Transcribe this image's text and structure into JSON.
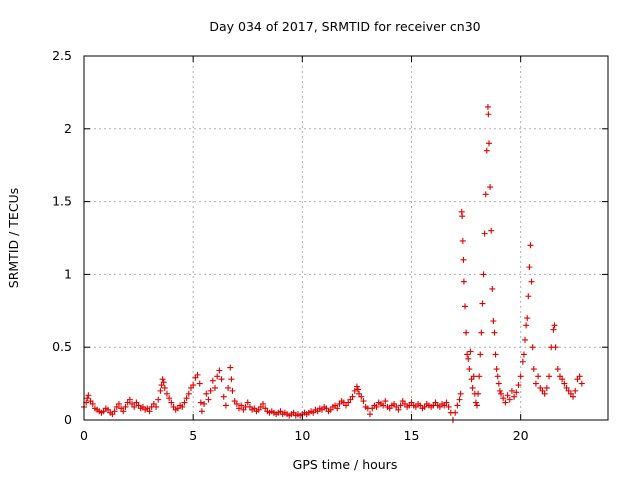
{
  "chart_data": {
    "type": "scatter",
    "title": "Day 034 of 2017, SRMTID for receiver cn30",
    "xlabel": "GPS time / hours",
    "ylabel": "SRMTID / TECUs",
    "xlim": [
      0,
      24
    ],
    "ylim": [
      0,
      2.5
    ],
    "xticks": [
      0,
      5,
      10,
      15,
      20
    ],
    "yticks": [
      0,
      0.5,
      1,
      1.5,
      2,
      2.5
    ],
    "xtick_labels": [
      "0",
      "5",
      "10",
      "15",
      "20"
    ],
    "ytick_labels": [
      "0",
      "0.5",
      "1",
      "1.5",
      "2",
      "2.5"
    ],
    "grid": true,
    "marker": "+",
    "color": "#e00000",
    "series": [
      {
        "name": "SRMTID",
        "points": [
          [
            0.0,
            0.09
          ],
          [
            0.1,
            0.12
          ],
          [
            0.15,
            0.15
          ],
          [
            0.2,
            0.17
          ],
          [
            0.3,
            0.13
          ],
          [
            0.4,
            0.11
          ],
          [
            0.5,
            0.08
          ],
          [
            0.6,
            0.07
          ],
          [
            0.7,
            0.06
          ],
          [
            0.8,
            0.05
          ],
          [
            0.9,
            0.06
          ],
          [
            1.0,
            0.08
          ],
          [
            1.1,
            0.07
          ],
          [
            1.2,
            0.05
          ],
          [
            1.3,
            0.04
          ],
          [
            1.4,
            0.06
          ],
          [
            1.5,
            0.09
          ],
          [
            1.6,
            0.11
          ],
          [
            1.7,
            0.08
          ],
          [
            1.8,
            0.06
          ],
          [
            1.9,
            0.09
          ],
          [
            2.0,
            0.12
          ],
          [
            2.1,
            0.14
          ],
          [
            2.2,
            0.11
          ],
          [
            2.3,
            0.09
          ],
          [
            2.4,
            0.12
          ],
          [
            2.5,
            0.1
          ],
          [
            2.6,
            0.08
          ],
          [
            2.7,
            0.09
          ],
          [
            2.8,
            0.07
          ],
          [
            2.9,
            0.08
          ],
          [
            3.0,
            0.06
          ],
          [
            3.1,
            0.09
          ],
          [
            3.2,
            0.11
          ],
          [
            3.3,
            0.09
          ],
          [
            3.4,
            0.14
          ],
          [
            3.5,
            0.2
          ],
          [
            3.55,
            0.24
          ],
          [
            3.6,
            0.28
          ],
          [
            3.65,
            0.26
          ],
          [
            3.7,
            0.22
          ],
          [
            3.8,
            0.18
          ],
          [
            3.9,
            0.15
          ],
          [
            4.0,
            0.12
          ],
          [
            4.1,
            0.09
          ],
          [
            4.2,
            0.07
          ],
          [
            4.3,
            0.08
          ],
          [
            4.4,
            0.1
          ],
          [
            4.5,
            0.09
          ],
          [
            4.6,
            0.12
          ],
          [
            4.7,
            0.15
          ],
          [
            4.8,
            0.18
          ],
          [
            4.9,
            0.22
          ],
          [
            5.0,
            0.24
          ],
          [
            5.1,
            0.29
          ],
          [
            5.2,
            0.31
          ],
          [
            5.3,
            0.25
          ],
          [
            5.35,
            0.12
          ],
          [
            5.4,
            0.06
          ],
          [
            5.5,
            0.11
          ],
          [
            5.6,
            0.18
          ],
          [
            5.7,
            0.14
          ],
          [
            5.8,
            0.2
          ],
          [
            5.9,
            0.27
          ],
          [
            6.0,
            0.22
          ],
          [
            6.1,
            0.3
          ],
          [
            6.2,
            0.34
          ],
          [
            6.3,
            0.28
          ],
          [
            6.4,
            0.16
          ],
          [
            6.5,
            0.1
          ],
          [
            6.6,
            0.22
          ],
          [
            6.7,
            0.36
          ],
          [
            6.75,
            0.28
          ],
          [
            6.8,
            0.2
          ],
          [
            6.9,
            0.13
          ],
          [
            7.0,
            0.11
          ],
          [
            7.1,
            0.08
          ],
          [
            7.2,
            0.1
          ],
          [
            7.3,
            0.07
          ],
          [
            7.4,
            0.09
          ],
          [
            7.5,
            0.12
          ],
          [
            7.6,
            0.09
          ],
          [
            7.7,
            0.07
          ],
          [
            7.8,
            0.08
          ],
          [
            7.9,
            0.06
          ],
          [
            8.0,
            0.07
          ],
          [
            8.1,
            0.09
          ],
          [
            8.2,
            0.11
          ],
          [
            8.3,
            0.08
          ],
          [
            8.4,
            0.06
          ],
          [
            8.5,
            0.05
          ],
          [
            8.6,
            0.06
          ],
          [
            8.7,
            0.05
          ],
          [
            8.8,
            0.04
          ],
          [
            8.9,
            0.05
          ],
          [
            9.0,
            0.06
          ],
          [
            9.1,
            0.04
          ],
          [
            9.2,
            0.05
          ],
          [
            9.3,
            0.04
          ],
          [
            9.4,
            0.03
          ],
          [
            9.5,
            0.04
          ],
          [
            9.6,
            0.05
          ],
          [
            9.7,
            0.03
          ],
          [
            9.8,
            0.04
          ],
          [
            9.9,
            0.03
          ],
          [
            10.0,
            0.04
          ],
          [
            10.1,
            0.05
          ],
          [
            10.2,
            0.04
          ],
          [
            10.3,
            0.05
          ],
          [
            10.4,
            0.06
          ],
          [
            10.5,
            0.05
          ],
          [
            10.6,
            0.07
          ],
          [
            10.7,
            0.06
          ],
          [
            10.8,
            0.08
          ],
          [
            10.9,
            0.07
          ],
          [
            11.0,
            0.09
          ],
          [
            11.1,
            0.08
          ],
          [
            11.2,
            0.06
          ],
          [
            11.3,
            0.07
          ],
          [
            11.4,
            0.09
          ],
          [
            11.5,
            0.1
          ],
          [
            11.6,
            0.08
          ],
          [
            11.7,
            0.11
          ],
          [
            11.8,
            0.13
          ],
          [
            11.9,
            0.12
          ],
          [
            12.0,
            0.1
          ],
          [
            12.1,
            0.12
          ],
          [
            12.2,
            0.14
          ],
          [
            12.3,
            0.16
          ],
          [
            12.4,
            0.2
          ],
          [
            12.5,
            0.23
          ],
          [
            12.55,
            0.21
          ],
          [
            12.6,
            0.18
          ],
          [
            12.7,
            0.16
          ],
          [
            12.8,
            0.13
          ],
          [
            12.9,
            0.09
          ],
          [
            13.0,
            0.08
          ],
          [
            13.1,
            0.04
          ],
          [
            13.2,
            0.08
          ],
          [
            13.3,
            0.1
          ],
          [
            13.4,
            0.09
          ],
          [
            13.5,
            0.12
          ],
          [
            13.6,
            0.11
          ],
          [
            13.7,
            0.1
          ],
          [
            13.8,
            0.13
          ],
          [
            13.9,
            0.09
          ],
          [
            14.0,
            0.08
          ],
          [
            14.1,
            0.1
          ],
          [
            14.2,
            0.11
          ],
          [
            14.3,
            0.09
          ],
          [
            14.4,
            0.07
          ],
          [
            14.5,
            0.1
          ],
          [
            14.6,
            0.13
          ],
          [
            14.7,
            0.11
          ],
          [
            14.8,
            0.09
          ],
          [
            14.9,
            0.1
          ],
          [
            15.0,
            0.12
          ],
          [
            15.1,
            0.1
          ],
          [
            15.2,
            0.09
          ],
          [
            15.3,
            0.11
          ],
          [
            15.4,
            0.1
          ],
          [
            15.5,
            0.08
          ],
          [
            15.6,
            0.09
          ],
          [
            15.7,
            0.11
          ],
          [
            15.8,
            0.1
          ],
          [
            15.9,
            0.09
          ],
          [
            16.0,
            0.1
          ],
          [
            16.1,
            0.12
          ],
          [
            16.2,
            0.1
          ],
          [
            16.3,
            0.09
          ],
          [
            16.4,
            0.11
          ],
          [
            16.5,
            0.1
          ],
          [
            16.6,
            0.12
          ],
          [
            16.7,
            0.09
          ],
          [
            16.8,
            0.05
          ],
          [
            16.9,
            0.0
          ],
          [
            17.0,
            0.05
          ],
          [
            17.1,
            0.1
          ],
          [
            17.2,
            0.14
          ],
          [
            17.25,
            0.18
          ],
          [
            17.3,
            1.43
          ],
          [
            17.32,
            1.4
          ],
          [
            17.35,
            1.23
          ],
          [
            17.38,
            1.1
          ],
          [
            17.4,
            0.95
          ],
          [
            17.45,
            0.78
          ],
          [
            17.5,
            0.6
          ],
          [
            17.55,
            0.45
          ],
          [
            17.6,
            0.42
          ],
          [
            17.65,
            0.35
          ],
          [
            17.7,
            0.47
          ],
          [
            17.75,
            0.28
          ],
          [
            17.8,
            0.22
          ],
          [
            17.85,
            0.3
          ],
          [
            17.9,
            0.18
          ],
          [
            17.95,
            0.12
          ],
          [
            18.0,
            0.1
          ],
          [
            18.05,
            0.18
          ],
          [
            18.1,
            0.3
          ],
          [
            18.15,
            0.45
          ],
          [
            18.2,
            0.6
          ],
          [
            18.25,
            0.8
          ],
          [
            18.3,
            1.0
          ],
          [
            18.35,
            1.28
          ],
          [
            18.4,
            1.55
          ],
          [
            18.45,
            1.85
          ],
          [
            18.5,
            2.15
          ],
          [
            18.52,
            2.1
          ],
          [
            18.55,
            1.9
          ],
          [
            18.6,
            1.6
          ],
          [
            18.65,
            1.3
          ],
          [
            18.7,
            0.9
          ],
          [
            18.75,
            0.68
          ],
          [
            18.8,
            0.6
          ],
          [
            18.85,
            0.45
          ],
          [
            18.9,
            0.35
          ],
          [
            18.95,
            0.3
          ],
          [
            19.0,
            0.25
          ],
          [
            19.05,
            0.2
          ],
          [
            19.1,
            0.18
          ],
          [
            19.2,
            0.15
          ],
          [
            19.3,
            0.12
          ],
          [
            19.4,
            0.17
          ],
          [
            19.5,
            0.14
          ],
          [
            19.6,
            0.2
          ],
          [
            19.7,
            0.16
          ],
          [
            19.8,
            0.19
          ],
          [
            19.9,
            0.24
          ],
          [
            20.0,
            0.3
          ],
          [
            20.1,
            0.4
          ],
          [
            20.15,
            0.45
          ],
          [
            20.2,
            0.55
          ],
          [
            20.25,
            0.65
          ],
          [
            20.3,
            0.7
          ],
          [
            20.35,
            0.85
          ],
          [
            20.4,
            1.05
          ],
          [
            20.45,
            1.2
          ],
          [
            20.5,
            0.95
          ],
          [
            20.55,
            0.5
          ],
          [
            20.6,
            0.35
          ],
          [
            20.7,
            0.25
          ],
          [
            20.8,
            0.3
          ],
          [
            20.9,
            0.22
          ],
          [
            21.0,
            0.2
          ],
          [
            21.1,
            0.18
          ],
          [
            21.2,
            0.22
          ],
          [
            21.3,
            0.3
          ],
          [
            21.4,
            0.5
          ],
          [
            21.5,
            0.62
          ],
          [
            21.55,
            0.65
          ],
          [
            21.6,
            0.5
          ],
          [
            21.7,
            0.35
          ],
          [
            21.8,
            0.3
          ],
          [
            21.9,
            0.28
          ],
          [
            22.0,
            0.25
          ],
          [
            22.1,
            0.22
          ],
          [
            22.2,
            0.2
          ],
          [
            22.3,
            0.18
          ],
          [
            22.4,
            0.16
          ],
          [
            22.5,
            0.2
          ],
          [
            22.6,
            0.28
          ],
          [
            22.7,
            0.3
          ],
          [
            22.8,
            0.25
          ]
        ]
      }
    ]
  }
}
